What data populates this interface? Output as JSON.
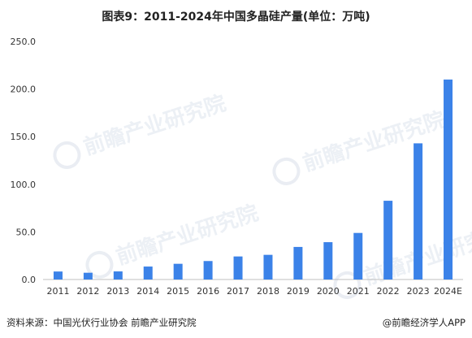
{
  "title": "图表9：2011-2024年中国多晶硅产量(单位：万吨)",
  "source": "资料来源：中国光伏行业协会 前瞻产业研究院",
  "credit": "@前瞻经济学人APP",
  "watermark": "前瞻产业研究院",
  "colors": {
    "bar": "#3b82e8",
    "axis": "#bfbfbf",
    "text": "#333333"
  },
  "chart_data": {
    "type": "bar",
    "categories": [
      "2011",
      "2012",
      "2013",
      "2014",
      "2015",
      "2016",
      "2017",
      "2018",
      "2019",
      "2020",
      "2021",
      "2022",
      "2023",
      "2024E"
    ],
    "values": [
      8.4,
      7.1,
      8.5,
      13.6,
      16.5,
      19.4,
      24.2,
      25.9,
      34.2,
      39.2,
      48.9,
      82.7,
      143.0,
      210.0
    ],
    "ylim": [
      0,
      250
    ],
    "yticks": [
      "0.0",
      "50.0",
      "100.0",
      "150.0",
      "200.0",
      "250.0"
    ],
    "grid": false,
    "xlabel": "",
    "ylabel": ""
  }
}
